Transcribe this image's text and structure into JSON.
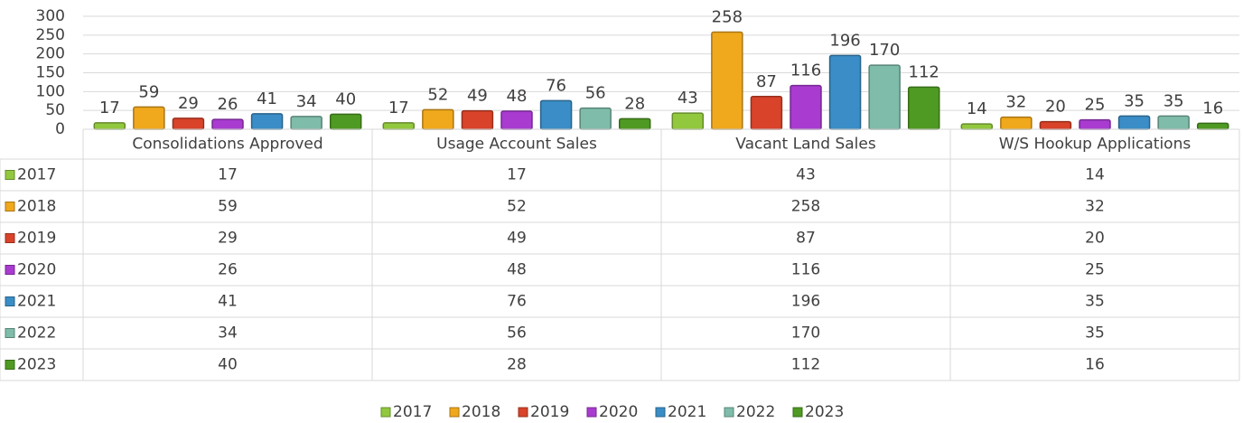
{
  "chart_data": {
    "type": "bar",
    "categories": [
      "Consolidations Approved",
      "Usage Account Sales",
      "Vacant Land Sales",
      "W/S Hookup Applications"
    ],
    "series": [
      {
        "name": "2017",
        "color": "#92c83e",
        "values": [
          17,
          17,
          43,
          14
        ]
      },
      {
        "name": "2018",
        "color": "#f0a81c",
        "values": [
          59,
          52,
          258,
          32
        ]
      },
      {
        "name": "2019",
        "color": "#d8432a",
        "values": [
          29,
          49,
          87,
          20
        ]
      },
      {
        "name": "2020",
        "color": "#a93bd0",
        "values": [
          26,
          48,
          116,
          25
        ]
      },
      {
        "name": "2021",
        "color": "#3a8dc6",
        "values": [
          41,
          76,
          196,
          35
        ]
      },
      {
        "name": "2022",
        "color": "#7fbcaa",
        "values": [
          34,
          56,
          170,
          35
        ]
      },
      {
        "name": "2023",
        "color": "#4f9a22",
        "values": [
          40,
          28,
          112,
          16
        ]
      }
    ],
    "ylim": [
      0,
      300
    ],
    "yticks": [
      0,
      50,
      100,
      150,
      200,
      250,
      300
    ],
    "grid": true,
    "data_labels": true,
    "data_table": true,
    "legend": "bottom"
  }
}
